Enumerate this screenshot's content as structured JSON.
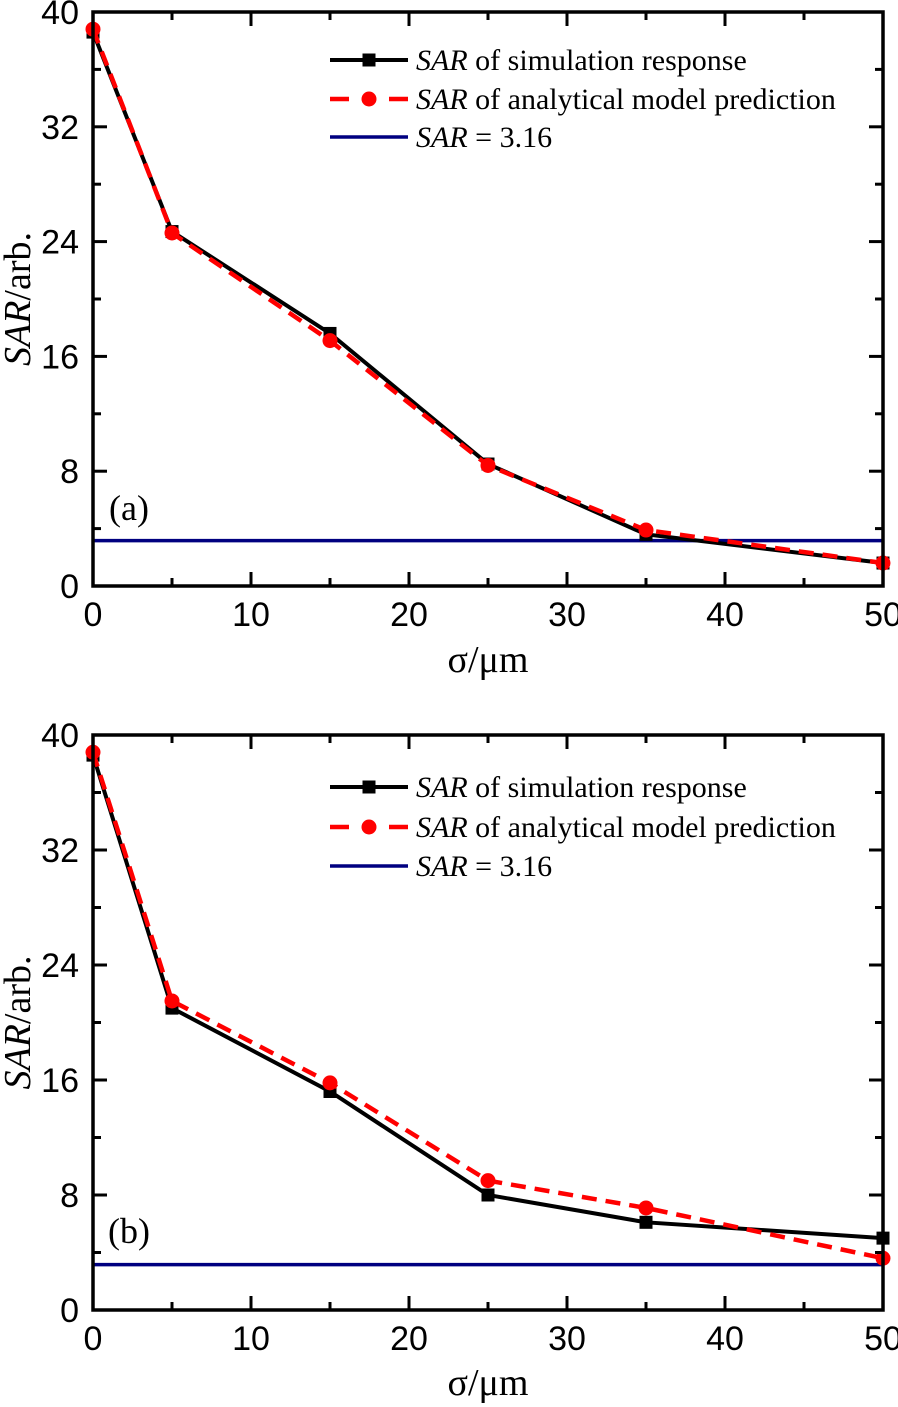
{
  "figure": {
    "background": "#ffffff",
    "frame_color": "#000000",
    "panels": [
      {
        "letter": "(a)"
      },
      {
        "letter": "(b)"
      }
    ],
    "legend": {
      "items": [
        {
          "text_italic": "SAR",
          "text_rest": " of simulation response",
          "sample": "black-solid-square",
          "color": "#000000"
        },
        {
          "text_italic": "SAR",
          "text_rest": " of analytical model prediction",
          "sample": "red-dashed-circle",
          "color": "#ff0000"
        },
        {
          "text_italic": "SAR",
          "text_rest": " = 3.16",
          "sample": "navy-solid-line",
          "color": "#000080"
        }
      ]
    },
    "y_axis_title": {
      "italic": "SAR",
      "rest": "/arb."
    },
    "x_axis_title": "σ/μm"
  },
  "chart_data": [
    {
      "type": "line",
      "panel": "(a)",
      "title": "",
      "xlabel": "σ/μm",
      "ylabel": "SAR/arb.",
      "xlim": [
        0,
        50
      ],
      "ylim": [
        0,
        40
      ],
      "x_major_ticks": [
        0,
        10,
        20,
        30,
        40,
        50
      ],
      "x_minor_ticks": [
        5,
        15,
        25,
        35,
        45
      ],
      "y_major_ticks": [
        0,
        8,
        16,
        24,
        32,
        40
      ],
      "y_minor_ticks": [
        4,
        12,
        20,
        28,
        36
      ],
      "grid": false,
      "legend_position": "top-center-inside",
      "x": [
        0,
        5,
        15,
        25,
        35,
        50
      ],
      "series": [
        {
          "name": "SAR of simulation response",
          "color": "#000000",
          "line_style": "solid",
          "marker": "square",
          "values": [
            38.6,
            24.7,
            17.6,
            8.5,
            3.6,
            1.6
          ]
        },
        {
          "name": "SAR of analytical model prediction",
          "color": "#ff0000",
          "line_style": "dashed",
          "marker": "circle",
          "values": [
            38.8,
            24.6,
            17.1,
            8.4,
            3.9,
            1.6
          ]
        }
      ],
      "reference_line": {
        "name": "SAR = 3.16",
        "value": 3.16,
        "color": "#000080"
      }
    },
    {
      "type": "line",
      "panel": "(b)",
      "title": "",
      "xlabel": "σ/μm",
      "ylabel": "SAR/arb.",
      "xlim": [
        0,
        50
      ],
      "ylim": [
        0,
        40
      ],
      "x_major_ticks": [
        0,
        10,
        20,
        30,
        40,
        50
      ],
      "x_minor_ticks": [
        5,
        15,
        25,
        35,
        45
      ],
      "y_major_ticks": [
        0,
        8,
        16,
        24,
        32,
        40
      ],
      "y_minor_ticks": [
        4,
        12,
        20,
        28,
        36
      ],
      "grid": false,
      "legend_position": "top-center-inside",
      "x": [
        0,
        5,
        15,
        25,
        35,
        50
      ],
      "series": [
        {
          "name": "SAR of simulation response",
          "color": "#000000",
          "line_style": "solid",
          "marker": "square",
          "values": [
            38.6,
            21.0,
            15.2,
            8.0,
            6.1,
            5.0
          ]
        },
        {
          "name": "SAR of analytical model prediction",
          "color": "#ff0000",
          "line_style": "dashed",
          "marker": "circle",
          "values": [
            38.8,
            21.5,
            15.8,
            9.0,
            7.1,
            3.6
          ]
        }
      ],
      "reference_line": {
        "name": "SAR = 3.16",
        "value": 3.16,
        "color": "#000080"
      }
    }
  ]
}
